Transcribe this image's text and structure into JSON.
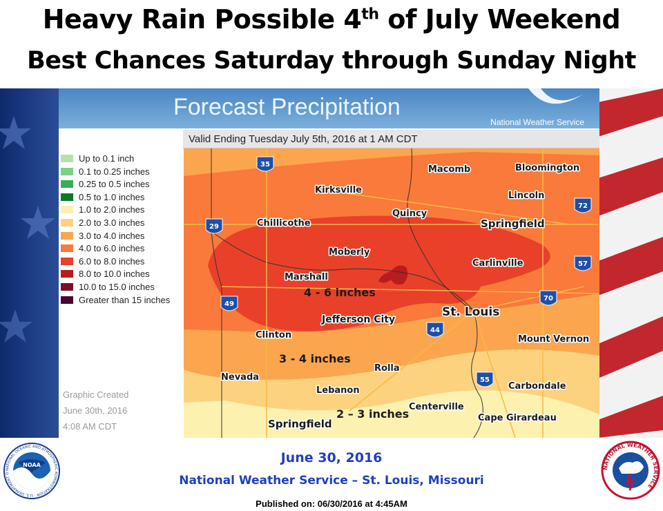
{
  "header": {
    "line1_pre": "Heavy Rain Possible 4",
    "line1_sup": "th",
    "line1_post": " of July Weekend",
    "line2": "Best Chances Saturday through Sunday Night"
  },
  "panel": {
    "title": "Forecast Precipitation",
    "agency": "National Weather Service",
    "valid": "Valid Ending Tuesday July 5th, 2016 at 1 AM CDT"
  },
  "legend": [
    {
      "label": "Up to 0.1 inch",
      "color": "#b5e0b0"
    },
    {
      "label": "0.1 to 0.25 inches",
      "color": "#7fcf86"
    },
    {
      "label": "0.25 to 0.5 inches",
      "color": "#3aae55"
    },
    {
      "label": "0.5 to 1.0 inches",
      "color": "#0b7a24"
    },
    {
      "label": "1.0 to 2.0 inches",
      "color": "#fdf1b0"
    },
    {
      "label": "2.0 to 3.0 inches",
      "color": "#fdd27f"
    },
    {
      "label": "3.0 to 4.0 inches",
      "color": "#fca54f"
    },
    {
      "label": "4.0 to 6.0 inches",
      "color": "#f97a3a"
    },
    {
      "label": "6.0 to 8.0 inches",
      "color": "#e9402a"
    },
    {
      "label": "8.0 to 10.0 inches",
      "color": "#b81c1c"
    },
    {
      "label": "10.0 to 15.0 inches",
      "color": "#7d0d2b"
    },
    {
      "label": "Greater than 15 inches",
      "color": "#4a0530"
    }
  ],
  "credit": {
    "line1": "Graphic Created",
    "line2": "June 30th, 2016",
    "line3": "4:08 AM CDT"
  },
  "map": {
    "cities": {
      "macomb": "Macomb",
      "bloomington": "Bloomington",
      "kirksville": "Kirksville",
      "quincy": "Quincy",
      "lincoln": "Lincoln",
      "chillicothe": "Chillicothe",
      "springfield_il": "Springfield",
      "moberly": "Moberly",
      "carlinville": "Carlinville",
      "marshall": "Marshall",
      "st_louis": "St. Louis",
      "jefferson_city": "Jefferson City",
      "clinton": "Clinton",
      "mount_vernon": "Mount Vernon",
      "rolla": "Rolla",
      "nevada": "Nevada",
      "lebanon": "Lebanon",
      "carbondale": "Carbondale",
      "centerville": "Centerville",
      "cape_girardeau": "Cape Girardeau",
      "springfield_mo": "Springfield"
    },
    "interstates": {
      "i35": "35",
      "i29": "29",
      "i72": "72",
      "i57": "57",
      "i49": "49",
      "i70": "70",
      "i44": "44",
      "i55": "55"
    },
    "annotations": {
      "zone_high": "4 - 6 inches",
      "zone_mid": "3 - 4 inches",
      "zone_low": "2 – 3 inches"
    }
  },
  "footer": {
    "date": "June 30, 2016",
    "office": "National Weather Service – St. Louis, Missouri",
    "published": "Published on: 06/30/2016 at 4:45AM",
    "noaa_label": "NOAA",
    "noaa_ring": "NATIONAL OCEANIC AND ATMOSPHERIC ADMINISTRATION · U.S. DEPARTMENT OF COMMERCE ·",
    "nws_ring": "NATIONAL WEATHER SERVICE"
  },
  "colors": {
    "title_blue": "#1f3fbf",
    "banner_blue": "#4a86c3"
  }
}
